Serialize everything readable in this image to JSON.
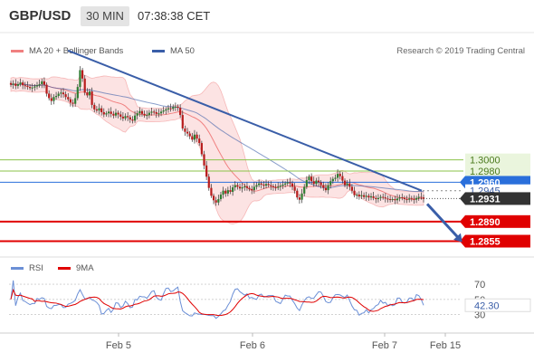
{
  "header": {
    "pair": "GBP/USD",
    "timeframe": "30 MIN",
    "time": "07:38:38 CET"
  },
  "legend": {
    "bollinger": "MA 20 + Bollinger Bands",
    "ma50": "MA 50",
    "credit": "Research © 2019 Trading Central"
  },
  "rsi_legend": {
    "rsi": "RSI",
    "ma": "9MA"
  },
  "colors": {
    "bollinger": "#f08080",
    "ma50": "#3a5ea8",
    "support": "#e00000",
    "pivot": "#2a6fdb",
    "resistance": "#8bc34a",
    "price_tag": "#333333",
    "rsi": "#6b8fd6",
    "rsi_ma": "#e00000"
  },
  "chart_data": [
    {
      "type": "candlestick",
      "title": "GBP/USD",
      "x_labels": [
        "Feb 5",
        "Feb 6",
        "Feb 7",
        "Feb 15"
      ],
      "levels": [
        {
          "value": 1.3,
          "label": "1.3000",
          "kind": "resistance"
        },
        {
          "value": 1.298,
          "label": "1.2980",
          "kind": "resistance"
        },
        {
          "value": 1.296,
          "label": "1.2960",
          "kind": "pivot"
        },
        {
          "value": 1.2945,
          "label": "1.2945",
          "kind": "target"
        },
        {
          "value": 1.2931,
          "label": "1.2931",
          "kind": "last_price"
        },
        {
          "value": 1.289,
          "label": "1.2890",
          "kind": "support"
        },
        {
          "value": 1.2855,
          "label": "1.2855",
          "kind": "support"
        }
      ],
      "last_price": 1.2931,
      "trendline": {
        "from": 1.3195,
        "to": 1.2945
      },
      "forecast_target": 1.2855,
      "prices": [
        1.3134,
        1.3136,
        1.3132,
        1.3135,
        1.3138,
        1.3133,
        1.3132,
        1.313,
        1.3128,
        1.3129,
        1.3131,
        1.3133,
        1.3135,
        1.314,
        1.3134,
        1.3118,
        1.311,
        1.3105,
        1.3112,
        1.3114,
        1.3118,
        1.312,
        1.3117,
        1.3112,
        1.3108,
        1.3102,
        1.31,
        1.311,
        1.313,
        1.316,
        1.3145,
        1.312,
        1.3115,
        1.3122,
        1.3098,
        1.309,
        1.3088,
        1.3092,
        1.3085,
        1.3081,
        1.3083,
        1.3086,
        1.3082,
        1.3079,
        1.3084,
        1.3081,
        1.3077,
        1.3074,
        1.3078,
        1.3076,
        1.3072,
        1.307,
        1.3079,
        1.3083,
        1.3087,
        1.3082,
        1.3079,
        1.308,
        1.3084,
        1.3086,
        1.3085,
        1.3082,
        1.3083,
        1.3086,
        1.3088,
        1.309,
        1.3092,
        1.3091,
        1.3094,
        1.3095,
        1.3093,
        1.308,
        1.3056,
        1.305,
        1.3047,
        1.3042,
        1.3036,
        1.3045,
        1.3038,
        1.303,
        1.301,
        1.299,
        1.297,
        1.295,
        1.2936,
        1.2928,
        1.2924,
        1.293,
        1.2938,
        1.2945,
        1.294,
        1.2946,
        1.2943,
        1.2951,
        1.2955,
        1.2952,
        1.2949,
        1.2951,
        1.2953,
        1.295,
        1.2948,
        1.2946,
        1.2952,
        1.2955,
        1.2958,
        1.2956,
        1.2954,
        1.2957,
        1.2955,
        1.2953,
        1.2951,
        1.295,
        1.2952,
        1.2954,
        1.2956,
        1.2958,
        1.296,
        1.2958,
        1.2952,
        1.2945,
        1.2933,
        1.2929,
        1.294,
        1.2952,
        1.2964,
        1.297,
        1.2962,
        1.2957,
        1.2963,
        1.296,
        1.2955,
        1.295,
        1.2946,
        1.2955,
        1.2962,
        1.2966,
        1.2968,
        1.2975,
        1.2971,
        1.2963,
        1.2955,
        1.2958,
        1.2952,
        1.2945,
        1.2937,
        1.2938,
        1.2935,
        1.2937,
        1.2934,
        1.2936,
        1.2933,
        1.2935,
        1.2932,
        1.293,
        1.2932,
        1.2934,
        1.2933,
        1.2931,
        1.293,
        1.2929,
        1.293,
        1.2928,
        1.2931,
        1.2933,
        1.2932,
        1.293,
        1.2929,
        1.2931,
        1.293,
        1.2929,
        1.2932,
        1.2934,
        1.2933,
        1.2931
      ],
      "y_range": [
        1.283,
        1.3185
      ]
    },
    {
      "type": "line",
      "title": "RSI",
      "y_ticks": [
        70,
        50,
        30
      ],
      "last_value": 42.3,
      "last_label": "42.30",
      "y_range": [
        8,
        82
      ]
    }
  ]
}
